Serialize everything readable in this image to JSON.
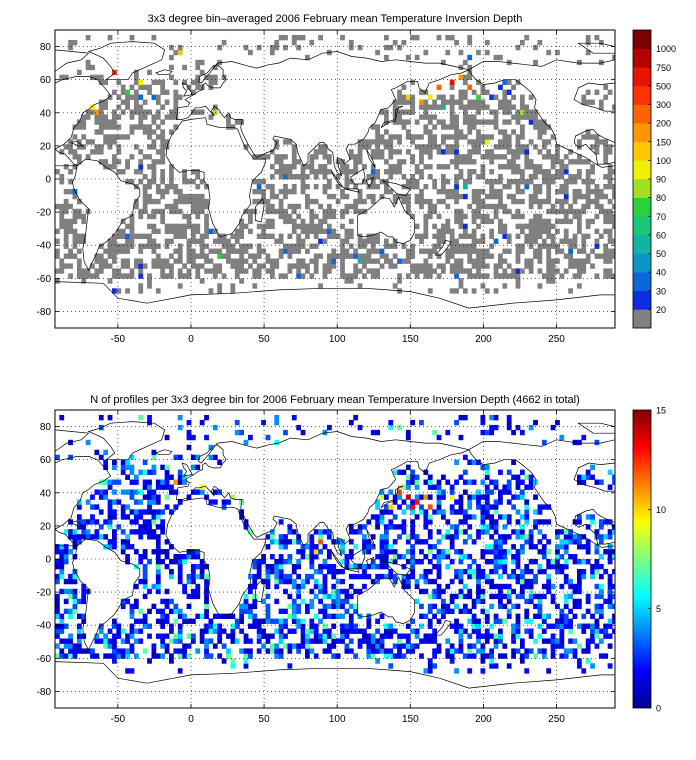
{
  "chart_data": [
    {
      "type": "heatmap",
      "title": "3x3 degree bin–averaged 2006 February mean Temperature Inversion Depth",
      "x_ticks": [
        -50,
        0,
        50,
        100,
        150,
        200,
        250
      ],
      "y_ticks": [
        80,
        60,
        40,
        20,
        0,
        -20,
        -40,
        -60,
        -80
      ],
      "xlim": [
        -93,
        290
      ],
      "ylim": [
        -90,
        90
      ],
      "grid": "dotted",
      "colorbar": {
        "position": "right",
        "scale": "discrete",
        "levels": [
          "20",
          "30",
          "40",
          "50",
          "60",
          "70",
          "80",
          "90",
          "100",
          "150",
          "200",
          "300",
          "500",
          "750",
          "1000"
        ],
        "colors": [
          "#808080",
          "#0a2ee0",
          "#0a68dc",
          "#0a96c8",
          "#10b4a0",
          "#18c878",
          "#28d23c",
          "#a0e020",
          "#f0f000",
          "#ffc800",
          "#ff9600",
          "#ff6400",
          "#ff3200",
          "#e81400",
          "#b40000",
          "#7a0000"
        ]
      },
      "ocean_coverage_value": "20",
      "highlight_points": [
        {
          "lon": -55,
          "lat": 62,
          "value": "500"
        },
        {
          "lon": -52,
          "lat": 59,
          "value": "300"
        },
        {
          "lon": -70,
          "lat": 43,
          "value": "100"
        },
        {
          "lon": -66,
          "lat": 40,
          "value": "200"
        },
        {
          "lon": -46,
          "lat": 50,
          "value": "80"
        },
        {
          "lon": -37,
          "lat": 56,
          "value": "100"
        },
        {
          "lon": -28,
          "lat": 48,
          "value": "40"
        },
        {
          "lon": -19,
          "lat": 63,
          "value": "60"
        },
        {
          "lon": -10,
          "lat": 76,
          "value": "150"
        },
        {
          "lon": 5,
          "lat": 41,
          "value": "100"
        },
        {
          "lon": 14,
          "lat": 38,
          "value": "90"
        },
        {
          "lon": 20,
          "lat": 40,
          "value": "50"
        },
        {
          "lon": 8,
          "lat": 44,
          "value": "30"
        },
        {
          "lon": 155,
          "lat": 44,
          "value": "200"
        },
        {
          "lon": 161,
          "lat": 47,
          "value": "100"
        },
        {
          "lon": 167,
          "lat": 53,
          "value": "300"
        },
        {
          "lon": 176,
          "lat": 56,
          "value": "750"
        },
        {
          "lon": 182,
          "lat": 59,
          "value": "200"
        },
        {
          "lon": 188,
          "lat": 53,
          "value": "300"
        },
        {
          "lon": 146,
          "lat": 47,
          "value": "150"
        },
        {
          "lon": 170,
          "lat": 41,
          "value": "60"
        },
        {
          "lon": 194,
          "lat": 47,
          "value": "80"
        },
        {
          "lon": 200,
          "lat": 20,
          "value": "100"
        },
        {
          "lon": 224,
          "lat": 38,
          "value": "90"
        },
        {
          "lon": 212,
          "lat": 56,
          "value": "40"
        },
        {
          "lon": 230,
          "lat": 32,
          "value": "30"
        },
        {
          "lon": 17,
          "lat": -47,
          "value": "80"
        },
        {
          "lon": 113,
          "lat": -50,
          "value": "60"
        },
        {
          "lon": 128,
          "lat": -44,
          "value": "40"
        },
        {
          "lon": 86,
          "lat": -38,
          "value": "30"
        },
        {
          "lon": 62,
          "lat": -44,
          "value": "40"
        },
        {
          "lon": -37,
          "lat": -59,
          "value": "30"
        },
        {
          "lon": 38,
          "lat": 11,
          "value": "30"
        },
        {
          "lon": 137,
          "lat": -32,
          "value": "30"
        },
        {
          "lon": 185,
          "lat": -5,
          "value": "60"
        },
        {
          "lon": 221,
          "lat": -56,
          "value": "30"
        }
      ]
    },
    {
      "type": "heatmap",
      "title": "N of profiles per 3x3 degree bin for 2006 February mean Temperature Inversion Depth  (4662 in total)",
      "total_profiles": 4662,
      "x_ticks": [
        -50,
        0,
        50,
        100,
        150,
        200,
        250
      ],
      "y_ticks": [
        80,
        60,
        40,
        20,
        0,
        -20,
        -40,
        -60,
        -80
      ],
      "xlim": [
        -93,
        290
      ],
      "ylim": [
        -90,
        90
      ],
      "grid": "dotted",
      "colorbar": {
        "position": "right",
        "scale": "continuous",
        "min": 0,
        "max": 15,
        "ticks": [
          "0",
          "5",
          "10",
          "15"
        ],
        "colormap": "jet"
      },
      "hotspots": [
        {
          "lon": 146,
          "lat": 35,
          "value": 14
        },
        {
          "lon": 152,
          "lat": 32,
          "value": 13
        },
        {
          "lon": 140,
          "lat": 38,
          "value": 12
        },
        {
          "lon": 158,
          "lat": 35,
          "value": 11
        },
        {
          "lon": 149,
          "lat": 29,
          "value": 13
        },
        {
          "lon": 134,
          "lat": 29,
          "value": 10
        },
        {
          "lon": 128,
          "lat": 35,
          "value": 9
        },
        {
          "lon": 161,
          "lat": 29,
          "value": 12
        },
        {
          "lon": 143,
          "lat": 41,
          "value": 8
        },
        {
          "lon": 176,
          "lat": 35,
          "value": 9
        },
        {
          "lon": 87,
          "lat": 8,
          "value": 12
        },
        {
          "lon": 84,
          "lat": 2,
          "value": 10
        },
        {
          "lon": -12,
          "lat": 44,
          "value": 11
        },
        {
          "lon": 5,
          "lat": 41,
          "value": 9
        },
        {
          "lon": 26,
          "lat": 35,
          "value": 8
        },
        {
          "lon": 32,
          "lat": 33,
          "value": 7
        }
      ]
    }
  ]
}
